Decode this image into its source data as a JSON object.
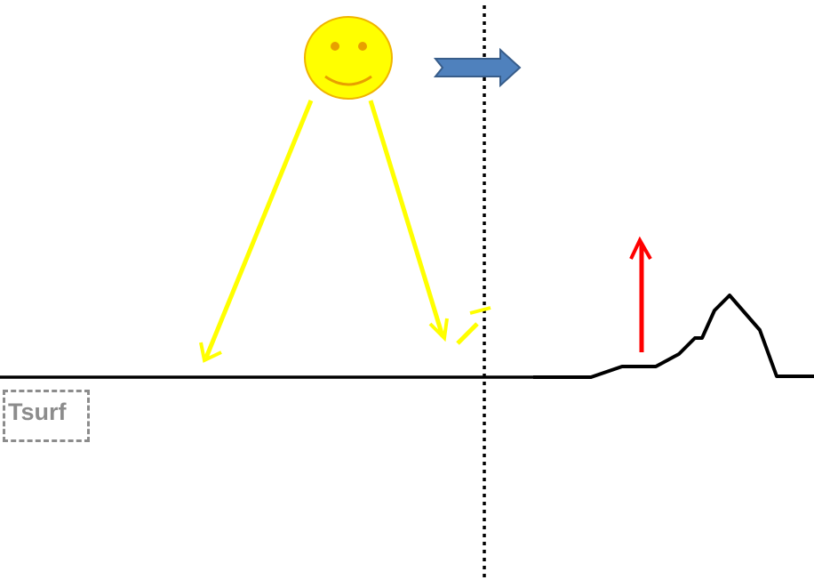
{
  "diagram": {
    "surface_label": "Tsurf",
    "colors": {
      "sun_fill": "#ffff00",
      "sun_stroke": "#f0b400",
      "sun_features": "#e8a000",
      "ray": "#ffff00",
      "motion_arrow_fill": "#4f81bd",
      "motion_arrow_stroke": "#385d8a",
      "emission_arrow": "#ff0000",
      "ground": "#000000",
      "divider": "#000000",
      "label": "#8c8c8c"
    },
    "icons": {
      "sun": "smiley-sun-icon",
      "motion": "right-arrow-icon",
      "emission": "up-arrow-icon"
    }
  }
}
